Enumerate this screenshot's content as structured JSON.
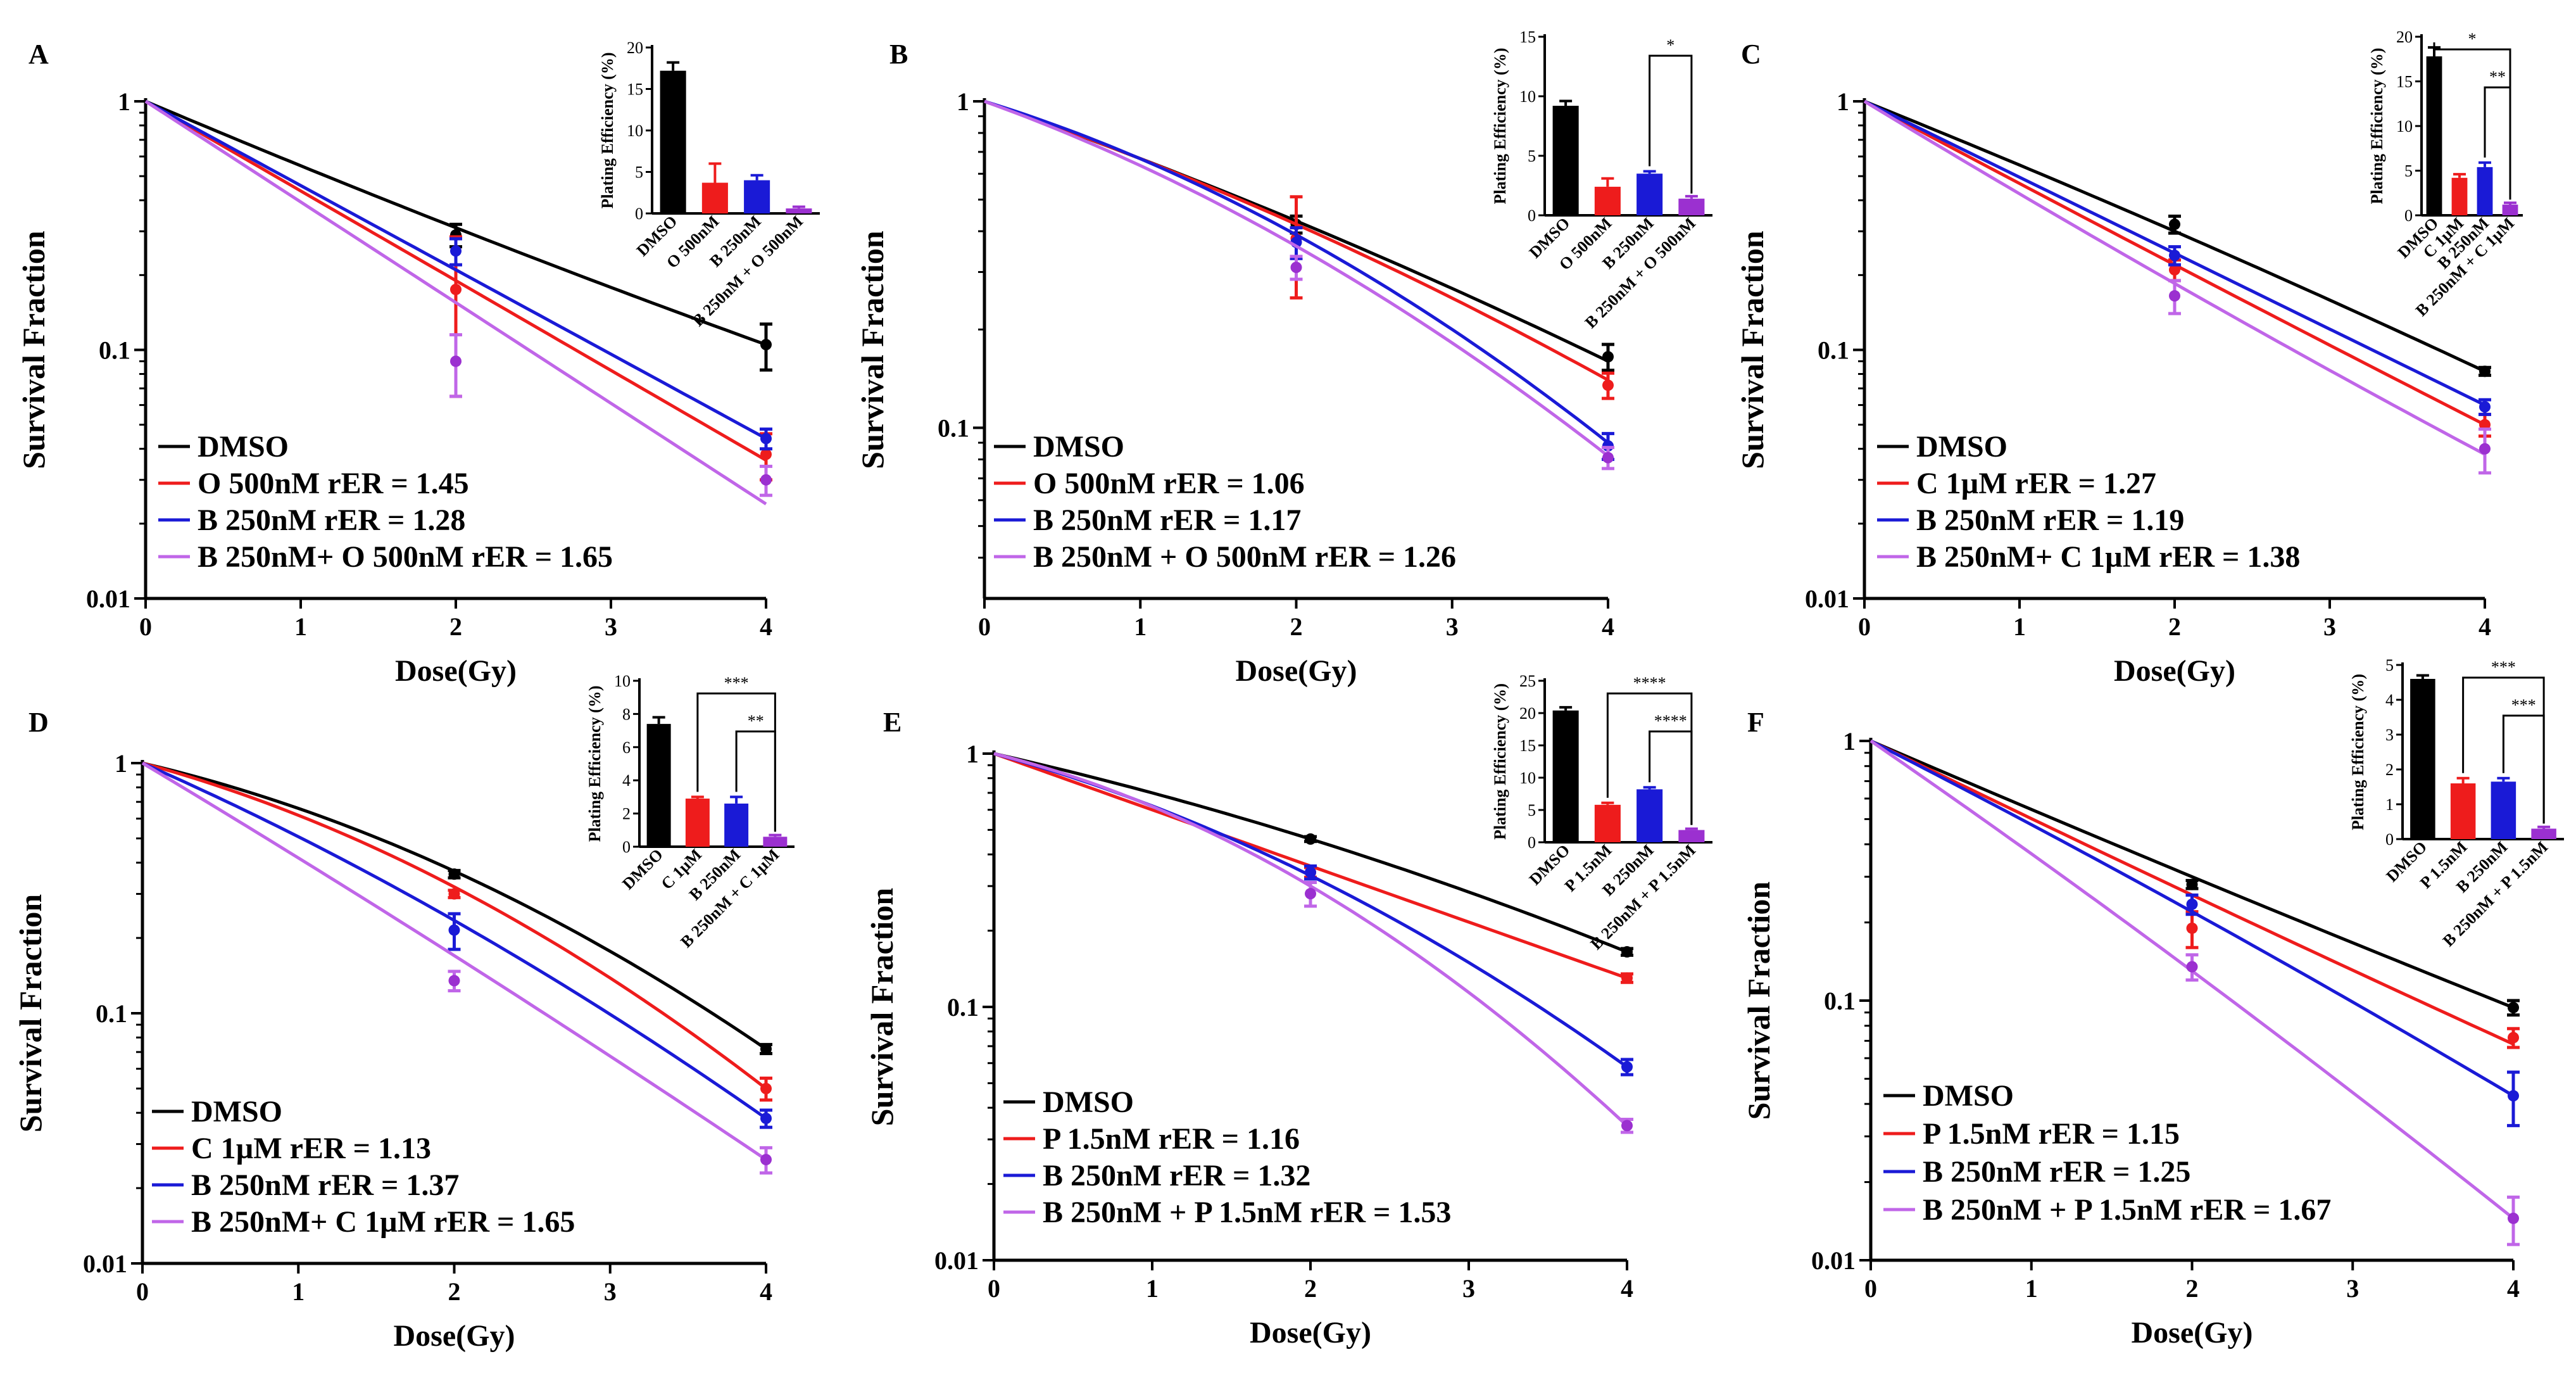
{
  "colors": {
    "DMSO": "#000000",
    "red": "#ee1c1c",
    "blue": "#1a1ad6",
    "purple": "#c066e8",
    "purple_dark": "#9b30d0"
  },
  "chart_data": [
    {
      "type": "line",
      "panel_label": "A",
      "xlabel": "Dose(Gy)",
      "ylabel": "Survival Fraction",
      "yscale": "log",
      "ylim": [
        0.01,
        1
      ],
      "yticks": [
        "1",
        "0.1",
        "0.01"
      ],
      "xlim": [
        0,
        4
      ],
      "xticks": [
        "0",
        "1",
        "2",
        "3",
        "4"
      ],
      "legend": "bottom-left",
      "series": [
        {
          "name": "DMSO",
          "legend_label": "DMSO",
          "color": "#000000",
          "x": [
            0,
            2,
            4
          ],
          "y": [
            1,
            0.29,
            0.105
          ],
          "err": [
            0,
            0.03,
            0.022
          ],
          "curve": [
            1,
            0.31,
            0.105
          ]
        },
        {
          "name": "O 500nM",
          "legend_label": "O 500nM rER = 1.45",
          "color": "#ee1c1c",
          "x": [
            0,
            2,
            4
          ],
          "y": [
            1,
            0.175,
            0.038
          ],
          "err": [
            0,
            0.11,
            0.008
          ],
          "curve": [
            1,
            0.19,
            0.036
          ]
        },
        {
          "name": "B 250nM",
          "legend_label": "B 250nM rER = 1.28",
          "color": "#1a1ad6",
          "x": [
            0,
            2,
            4
          ],
          "y": [
            1,
            0.25,
            0.044
          ],
          "err": [
            0,
            0.03,
            0.004
          ],
          "curve": [
            1,
            0.21,
            0.044
          ]
        },
        {
          "name": "B 250nM+ O 500nM",
          "legend_label": "B 250nM+ O 500nM rER = 1.65",
          "color": "#c066e8",
          "x": [
            0,
            2,
            4
          ],
          "y": [
            1,
            0.09,
            0.03
          ],
          "err": [
            0,
            0.025,
            0.004
          ],
          "curve": [
            1,
            0.155,
            0.024
          ]
        }
      ],
      "inset": {
        "ylabel": "Plating Efficiency (%)",
        "ylim": [
          0,
          20
        ],
        "yticks": [
          "0",
          "5",
          "10",
          "15",
          "20"
        ],
        "categories": [
          "DMSO",
          "O 500nM",
          "B 250nM",
          "B 250nM + O 500nM"
        ],
        "values": [
          17.2,
          3.7,
          4.0,
          0.6
        ],
        "errors": [
          1.0,
          2.3,
          0.6,
          0.2
        ],
        "brackets": []
      }
    },
    {
      "type": "line",
      "panel_label": "B",
      "xlabel": "Dose(Gy)",
      "ylabel": "Survival Fraction",
      "yscale": "log",
      "ylim": [
        0.03,
        1
      ],
      "yticks": [
        "1",
        "0.1"
      ],
      "xlim": [
        0,
        4
      ],
      "xticks": [
        "0",
        "1",
        "2",
        "3",
        "4"
      ],
      "legend": "bottom-left",
      "series": [
        {
          "name": "DMSO",
          "legend_label": "DMSO",
          "color": "#000000",
          "x": [
            0,
            2,
            4
          ],
          "y": [
            1,
            0.42,
            0.165
          ],
          "err": [
            0,
            0.025,
            0.015
          ],
          "curve": [
            1,
            0.43,
            0.16
          ]
        },
        {
          "name": "O 500nM",
          "legend_label": "O 500nM rER = 1.06",
          "color": "#ee1c1c",
          "x": [
            0,
            2,
            4
          ],
          "y": [
            1,
            0.38,
            0.135
          ],
          "err": [
            0,
            0.13,
            0.012
          ],
          "curve": [
            1,
            0.42,
            0.14
          ]
        },
        {
          "name": "B 250nM",
          "legend_label": "B 250nM rER = 1.17",
          "color": "#1a1ad6",
          "x": [
            0,
            2,
            4
          ],
          "y": [
            1,
            0.37,
            0.088
          ],
          "err": [
            0,
            0.04,
            0.008
          ],
          "curve": [
            1,
            0.39,
            0.09
          ]
        },
        {
          "name": "B 250nM + O 500nM",
          "legend_label": "B 250nM + O 500nM rER = 1.26",
          "color": "#c066e8",
          "x": [
            0,
            2,
            4
          ],
          "y": [
            1,
            0.31,
            0.081
          ],
          "err": [
            0,
            0.025,
            0.006
          ],
          "curve": [
            1,
            0.36,
            0.082
          ]
        }
      ],
      "inset": {
        "ylabel": "Plating Efficiency (%)",
        "ylim": [
          0,
          15
        ],
        "yticks": [
          "0",
          "5",
          "10",
          "15"
        ],
        "categories": [
          "DMSO",
          "O 500nM",
          "B 250nM",
          "B 250nM + O 500nM"
        ],
        "values": [
          9.2,
          2.4,
          3.5,
          1.4
        ],
        "errors": [
          0.4,
          0.7,
          0.2,
          0.2
        ],
        "brackets": [
          {
            "from": 2,
            "to": 3,
            "label": "*"
          }
        ]
      }
    },
    {
      "type": "line",
      "panel_label": "C",
      "xlabel": "Dose(Gy)",
      "ylabel": "Survival Fraction",
      "yscale": "log",
      "ylim": [
        0.01,
        1
      ],
      "yticks": [
        "1",
        "0.1",
        "0.01"
      ],
      "xlim": [
        0,
        4
      ],
      "xticks": [
        "0",
        "1",
        "2",
        "3",
        "4"
      ],
      "legend": "bottom-left",
      "series": [
        {
          "name": "DMSO",
          "legend_label": "DMSO",
          "color": "#000000",
          "x": [
            0,
            2,
            4
          ],
          "y": [
            1,
            0.32,
            0.082
          ],
          "err": [
            0,
            0.025,
            0.003
          ],
          "curve": [
            1,
            0.3,
            0.082
          ]
        },
        {
          "name": "C 1µM",
          "legend_label": "C 1µM rER = 1.27",
          "color": "#ee1c1c",
          "x": [
            0,
            2,
            4
          ],
          "y": [
            1,
            0.21,
            0.05
          ],
          "err": [
            0,
            0.02,
            0.005
          ],
          "curve": [
            1,
            0.22,
            0.05
          ]
        },
        {
          "name": "B 250nM",
          "legend_label": "B 250nM rER = 1.19",
          "color": "#1a1ad6",
          "x": [
            0,
            2,
            4
          ],
          "y": [
            1,
            0.24,
            0.059
          ],
          "err": [
            0,
            0.02,
            0.004
          ],
          "curve": [
            1,
            0.245,
            0.06
          ]
        },
        {
          "name": "B 250nM+ C 1µM",
          "legend_label": "B 250nM+ C 1µM rER = 1.38",
          "color": "#c066e8",
          "x": [
            0,
            2,
            4
          ],
          "y": [
            1,
            0.165,
            0.04
          ],
          "err": [
            0,
            0.025,
            0.008
          ],
          "curve": [
            1,
            0.185,
            0.038
          ]
        }
      ],
      "inset": {
        "ylabel": "Plating Efficiency (%)",
        "ylim": [
          0,
          20
        ],
        "yticks": [
          "0",
          "5",
          "10",
          "15",
          "20"
        ],
        "categories": [
          "DMSO",
          "C 1µM",
          "B 250nM",
          "B 250nM + C 1µM"
        ],
        "values": [
          17.8,
          4.2,
          5.4,
          1.2
        ],
        "errors": [
          1.0,
          0.4,
          0.5,
          0.2
        ],
        "brackets": [
          {
            "from": 2,
            "to": 3,
            "label": "**"
          },
          {
            "from": 0,
            "to": 3,
            "label": "*"
          }
        ]
      }
    },
    {
      "type": "line",
      "panel_label": "D",
      "xlabel": "Dose(Gy)",
      "ylabel": "Survival Fraction",
      "yscale": "log",
      "ylim": [
        0.01,
        1
      ],
      "yticks": [
        "1",
        "0.1",
        "0.01"
      ],
      "xlim": [
        0,
        4
      ],
      "xticks": [
        "0",
        "1",
        "2",
        "3",
        "4"
      ],
      "legend": "bottom-left",
      "series": [
        {
          "name": "DMSO",
          "legend_label": "DMSO",
          "color": "#000000",
          "x": [
            0,
            2,
            4
          ],
          "y": [
            1,
            0.36,
            0.072
          ],
          "err": [
            0,
            0.012,
            0.003
          ],
          "curve": [
            1,
            0.37,
            0.072
          ]
        },
        {
          "name": "C 1µM",
          "legend_label": "C 1µM rER = 1.13",
          "color": "#ee1c1c",
          "x": [
            0,
            2,
            4
          ],
          "y": [
            1,
            0.3,
            0.05
          ],
          "err": [
            0,
            0.01,
            0.005
          ],
          "curve": [
            1,
            0.32,
            0.05
          ]
        },
        {
          "name": "B 250nM",
          "legend_label": "B 250nM rER = 1.37",
          "color": "#1a1ad6",
          "x": [
            0,
            2,
            4
          ],
          "y": [
            1,
            0.215,
            0.038
          ],
          "err": [
            0,
            0.035,
            0.003
          ],
          "curve": [
            1,
            0.235,
            0.038
          ]
        },
        {
          "name": "B 250nM+ C 1µM",
          "legend_label": "B 250nM+ C 1µM rER = 1.65",
          "color": "#c066e8",
          "x": [
            0,
            2,
            4
          ],
          "y": [
            1,
            0.135,
            0.026
          ],
          "err": [
            0,
            0.012,
            0.003
          ],
          "curve": [
            1,
            0.17,
            0.026
          ]
        }
      ],
      "inset": {
        "ylabel": "Plating Efficiency (%)",
        "ylim": [
          0,
          10
        ],
        "yticks": [
          "0",
          "2",
          "4",
          "6",
          "8",
          "10"
        ],
        "categories": [
          "DMSO",
          "C 1µM",
          "B 250nM",
          "B 250nM + C 1µM"
        ],
        "values": [
          7.4,
          2.9,
          2.6,
          0.6
        ],
        "errors": [
          0.4,
          0.1,
          0.4,
          0.1
        ],
        "brackets": [
          {
            "from": 2,
            "to": 3,
            "label": "**"
          },
          {
            "from": 1,
            "to": 3,
            "label": "***"
          }
        ]
      }
    },
    {
      "type": "line",
      "panel_label": "E",
      "xlabel": "Dose(Gy)",
      "ylabel": "Survival Fraction",
      "yscale": "log",
      "ylim": [
        0.01,
        1
      ],
      "yticks": [
        "1",
        "0.1",
        "0.01"
      ],
      "xlim": [
        0,
        4
      ],
      "xticks": [
        "0",
        "1",
        "2",
        "3",
        "4"
      ],
      "legend": "bottom-left",
      "series": [
        {
          "name": "DMSO",
          "legend_label": "DMSO",
          "color": "#000000",
          "x": [
            0,
            2,
            4
          ],
          "y": [
            1,
            0.46,
            0.165
          ],
          "err": [
            0,
            0.01,
            0.005
          ],
          "curve": [
            1,
            0.46,
            0.165
          ]
        },
        {
          "name": "P 1.5nM",
          "legend_label": "P 1.5nM rER = 1.16",
          "color": "#ee1c1c",
          "x": [
            0,
            2,
            4
          ],
          "y": [
            1,
            0.34,
            0.13
          ],
          "err": [
            0,
            0.015,
            0.005
          ],
          "curve": [
            1,
            0.36,
            0.13
          ]
        },
        {
          "name": "B 250nM",
          "legend_label": "B 250nM rER = 1.32",
          "color": "#1a1ad6",
          "x": [
            0,
            2,
            4
          ],
          "y": [
            1,
            0.34,
            0.058
          ],
          "err": [
            0,
            0.02,
            0.004
          ],
          "curve": [
            1,
            0.33,
            0.058
          ]
        },
        {
          "name": "B 250nM + P 1.5nM",
          "legend_label": "B 250nM + P 1.5nM rER = 1.53",
          "color": "#c066e8",
          "x": [
            0,
            2,
            4
          ],
          "y": [
            1,
            0.28,
            0.034
          ],
          "err": [
            0,
            0.03,
            0.002
          ],
          "curve": [
            1,
            0.3,
            0.034
          ]
        }
      ],
      "inset": {
        "ylabel": "Plating Efficiency (%)",
        "ylim": [
          0,
          25
        ],
        "yticks": [
          "0",
          "5",
          "10",
          "15",
          "20",
          "25"
        ],
        "categories": [
          "DMSO",
          "P 1.5nM",
          "B 250nM",
          "B 250nM + P 1.5nM"
        ],
        "values": [
          20.4,
          5.8,
          8.2,
          1.9
        ],
        "errors": [
          0.5,
          0.3,
          0.3,
          0.2
        ],
        "brackets": [
          {
            "from": 2,
            "to": 3,
            "label": "****"
          },
          {
            "from": 1,
            "to": 3,
            "label": "****"
          }
        ]
      }
    },
    {
      "type": "line",
      "panel_label": "F",
      "xlabel": "Dose(Gy)",
      "ylabel": "Survival Fraction",
      "yscale": "log",
      "ylim": [
        0.01,
        1
      ],
      "yticks": [
        "1",
        "0.1",
        "0.01"
      ],
      "xlim": [
        0,
        4
      ],
      "xticks": [
        "0",
        "1",
        "2",
        "3",
        "4"
      ],
      "legend": "bottom-left",
      "series": [
        {
          "name": "DMSO",
          "legend_label": "DMSO",
          "color": "#000000",
          "x": [
            0,
            2,
            4
          ],
          "y": [
            1,
            0.28,
            0.094
          ],
          "err": [
            0,
            0.01,
            0.006
          ],
          "curve": [
            1,
            0.3,
            0.094
          ]
        },
        {
          "name": "P 1.5nM",
          "legend_label": "P 1.5nM rER = 1.15",
          "color": "#ee1c1c",
          "x": [
            0,
            2,
            4
          ],
          "y": [
            1,
            0.19,
            0.072
          ],
          "err": [
            0,
            0.03,
            0.006
          ],
          "curve": [
            1,
            0.255,
            0.068
          ]
        },
        {
          "name": "B 250nM",
          "legend_label": "B 250nM rER = 1.25",
          "color": "#1a1ad6",
          "x": [
            0,
            2,
            4
          ],
          "y": [
            1,
            0.235,
            0.043
          ],
          "err": [
            0,
            0.02,
            0.01
          ],
          "curve": [
            1,
            0.22,
            0.043
          ]
        },
        {
          "name": "B 250nM + P 1.5nM",
          "legend_label": "B 250nM + P 1.5nM rER = 1.67",
          "color": "#c066e8",
          "x": [
            0,
            2,
            4
          ],
          "y": [
            1,
            0.135,
            0.0145
          ],
          "err": [
            0,
            0.015,
            0.003
          ],
          "curve": [
            1,
            0.13,
            0.0145
          ]
        }
      ],
      "inset": {
        "ylabel": "Plating Efficiency (%)",
        "ylim": [
          0,
          5
        ],
        "yticks": [
          "0",
          "1",
          "2",
          "3",
          "4",
          "5"
        ],
        "categories": [
          "DMSO",
          "P 1.5nM",
          "B 250nM",
          "B 250nM + P 1.5nM"
        ],
        "values": [
          4.6,
          1.6,
          1.65,
          0.3
        ],
        "errors": [
          0.1,
          0.15,
          0.1,
          0.05
        ],
        "brackets": [
          {
            "from": 2,
            "to": 3,
            "label": "***"
          },
          {
            "from": 1,
            "to": 3,
            "label": "***"
          }
        ]
      }
    }
  ]
}
